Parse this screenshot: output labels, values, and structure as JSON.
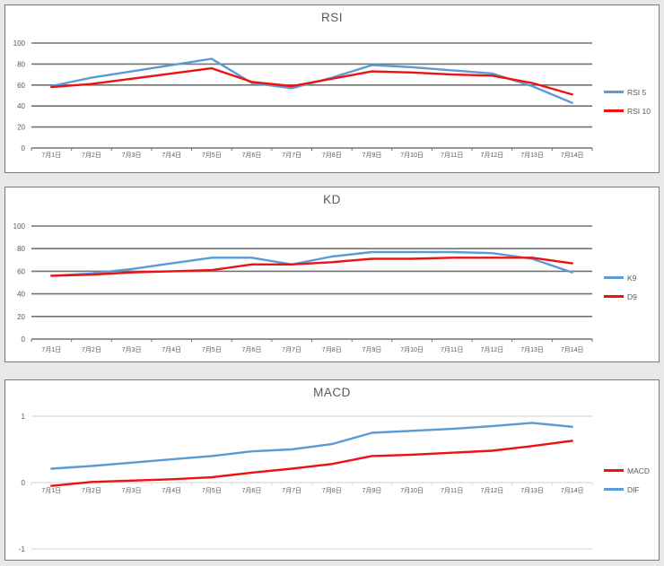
{
  "colors": {
    "blue": "#5B9BD5",
    "red": "#EE1111",
    "grid_dark": "#737373",
    "grid_light": "#d9d9d9",
    "text": "#595959",
    "panel_border": "#7a7a7a",
    "page_background": "#e8e8e8"
  },
  "chart_data": [
    {
      "type": "line",
      "title": "RSI",
      "xlabel": "",
      "ylabel": "",
      "ylim": [
        0,
        100
      ],
      "yticks": [
        100,
        80,
        60,
        40,
        20,
        0
      ],
      "grid": "dark",
      "legend_position": "right",
      "categories": [
        "7月1日",
        "7月2日",
        "7月3日",
        "7月4日",
        "7月5日",
        "7月6日",
        "7月7日",
        "7月8日",
        "7月9日",
        "7月10日",
        "7月11日",
        "7月12日",
        "7月13日",
        "7月14日"
      ],
      "series": [
        {
          "name": "RSI 5",
          "color": "#5B9BD5",
          "values": [
            59,
            67,
            73,
            79,
            85,
            62,
            57,
            67,
            79,
            77,
            74,
            71,
            59,
            43
          ]
        },
        {
          "name": "RSI 10",
          "color": "#EE1111",
          "values": [
            58,
            61,
            66,
            71,
            76,
            63,
            59,
            66,
            73,
            72,
            70,
            69,
            62,
            51
          ]
        }
      ]
    },
    {
      "type": "line",
      "title": "KD",
      "xlabel": "",
      "ylabel": "",
      "ylim": [
        0,
        100
      ],
      "yticks": [
        100,
        80,
        60,
        40,
        20,
        0
      ],
      "grid": "dark",
      "legend_position": "right",
      "categories": [
        "7月1日",
        "7月2日",
        "7月3日",
        "7月4日",
        "7月5日",
        "7月6日",
        "7月7日",
        "7月8日",
        "7月9日",
        "7月10日",
        "7月11日",
        "7月12日",
        "7月13日",
        "7月14日"
      ],
      "series": [
        {
          "name": "K9",
          "color": "#5B9BD5",
          "values": [
            56,
            58,
            62,
            67,
            72,
            72,
            66,
            73,
            77,
            77,
            77,
            76,
            71,
            59
          ]
        },
        {
          "name": "D9",
          "color": "#EE1111",
          "values": [
            56,
            57,
            59,
            60,
            61,
            66,
            66,
            68,
            71,
            71,
            72,
            72,
            72,
            67
          ]
        }
      ]
    },
    {
      "type": "line",
      "title": "MACD",
      "xlabel": "",
      "ylabel": "",
      "ylim": [
        -1,
        1
      ],
      "yticks": [
        1,
        0,
        -1
      ],
      "grid": "light",
      "legend_position": "right",
      "categories": [
        "7月1日",
        "7月2日",
        "7月3日",
        "7月4日",
        "7月5日",
        "7月6日",
        "7月7日",
        "7月8日",
        "7月9日",
        "7月10日",
        "7月11日",
        "7月12日",
        "7月13日",
        "7月14日"
      ],
      "series": [
        {
          "name": "MACD",
          "color": "#EE1111",
          "values": [
            -0.05,
            0.01,
            0.03,
            0.05,
            0.08,
            0.15,
            0.21,
            0.28,
            0.4,
            0.42,
            0.45,
            0.48,
            0.55,
            0.63
          ]
        },
        {
          "name": "DIF",
          "color": "#5B9BD5",
          "values": [
            0.21,
            0.25,
            0.3,
            0.35,
            0.4,
            0.47,
            0.5,
            0.58,
            0.75,
            0.78,
            0.81,
            0.85,
            0.9,
            0.84
          ]
        }
      ]
    }
  ]
}
